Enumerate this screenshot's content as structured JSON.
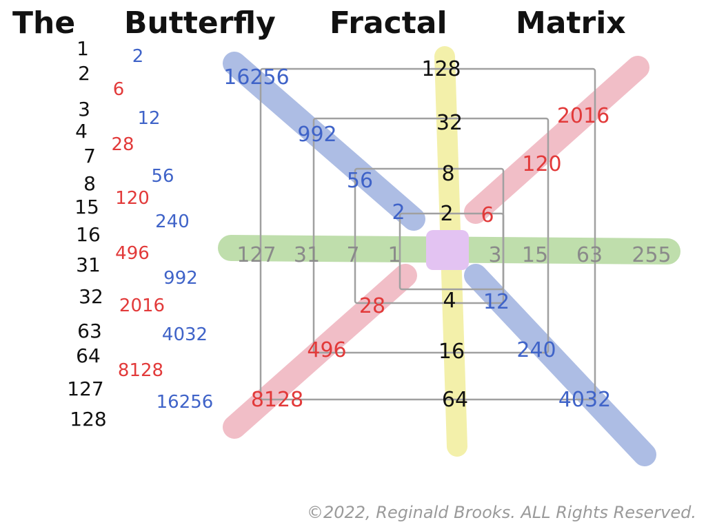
{
  "title_words": [
    "The",
    "Butterfly",
    "Fractal",
    "Matrix"
  ],
  "copyright": "©2022, Reginald Brooks. ALL Rights Reserved.",
  "colors": {
    "black": "#111111",
    "red": "#e23a3a",
    "blue": "#3f63c8",
    "gray": "#8a8a8a",
    "band_blue": "#9fb2e0",
    "band_red": "#f0b8c2",
    "band_green": "#b9dba4",
    "band_yellow": "#f3f0a6",
    "center_purple": "#e3c3f2"
  },
  "side_list": {
    "black": [
      "1",
      "2",
      "3",
      "4",
      "7",
      "8",
      "15",
      "16",
      "31",
      "32",
      "63",
      "64",
      "127",
      "128"
    ],
    "red": [
      "6",
      "28",
      "120",
      "496",
      "2016",
      "8128"
    ],
    "blue": [
      "2",
      "12",
      "56",
      "240",
      "992",
      "4032",
      "16256"
    ]
  },
  "matrix": {
    "vertical_up": [
      "128",
      "32",
      "8",
      "2"
    ],
    "vertical_down": [
      "4",
      "16",
      "64"
    ],
    "horizontal_left": [
      "127",
      "31",
      "7",
      "1"
    ],
    "horizontal_right": [
      "3",
      "15",
      "63",
      "255"
    ],
    "diag_upper_left": [
      "16256",
      "992",
      "56",
      "2"
    ],
    "diag_upper_right": [
      "2016",
      "120",
      "6"
    ],
    "diag_lower_left": [
      "28",
      "496",
      "8128"
    ],
    "diag_lower_right": [
      "12",
      "240",
      "4032"
    ]
  }
}
